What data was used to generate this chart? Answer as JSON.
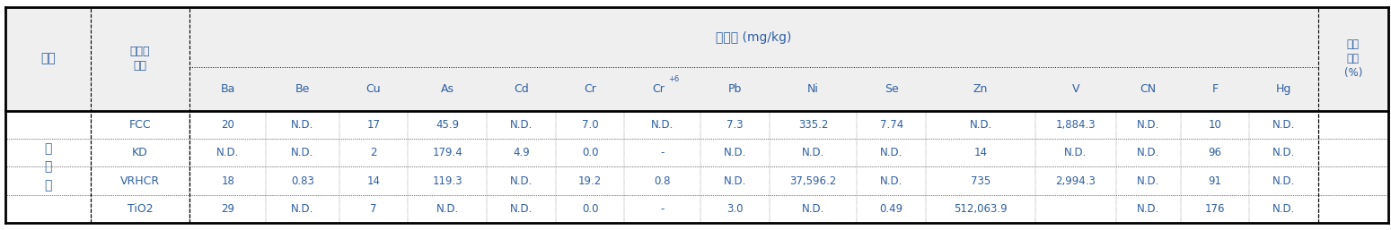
{
  "title_header": "중금속 (mg/kg)",
  "col1_header": "구분",
  "col2_header": "폐기물\n종류",
  "subheaders": [
    "Ba",
    "Be",
    "Cu",
    "As",
    "Cd",
    "Cr",
    "Cr+6",
    "Pb",
    "Ni",
    "Se",
    "Zn",
    "V",
    "CN",
    "F",
    "Hg"
  ],
  "last_col_header": "수분\n함량\n(%)",
  "row_group_label": "폐\n촉\n매",
  "rows": [
    [
      "FCC",
      "20",
      "N.D.",
      "17",
      "45.9",
      "N.D.",
      "7.0",
      "N.D.",
      "7.3",
      "335.2",
      "7.74",
      "N.D.1,884.3",
      "N.D.",
      "10",
      "N.D."
    ],
    [
      "KD",
      "N.D.",
      "N.D.",
      "2",
      "179.4",
      "4.9",
      "0.0",
      "-",
      "N.D.",
      "N.D.",
      "N.D.",
      "14   N.D.",
      "N.D.",
      "96",
      "N.D."
    ],
    [
      "VRHCR",
      "18",
      "0.83",
      "14",
      "119.3",
      "N.D.",
      "19.2",
      "0.8",
      "N.D.",
      "37,596.2",
      "N.D.",
      "7352,994.3",
      "N.D.",
      "91",
      "N.D."
    ],
    [
      "TiO2",
      "29",
      "N.D.",
      "7",
      "N.D.",
      "N.D.",
      "0.0",
      "-",
      "3.0",
      "N.D.",
      "0.49",
      "512,063.9",
      "N.D.",
      "176",
      "N.D."
    ]
  ],
  "bg_header": "#efefef",
  "bg_white": "#ffffff",
  "text_color_blue": "#2e5fa3",
  "text_color_dark": "#1a1a3a",
  "border_thick": 2.0,
  "border_thin": 0.7,
  "font_size_main": 9.5,
  "font_size_sub": 8.5
}
